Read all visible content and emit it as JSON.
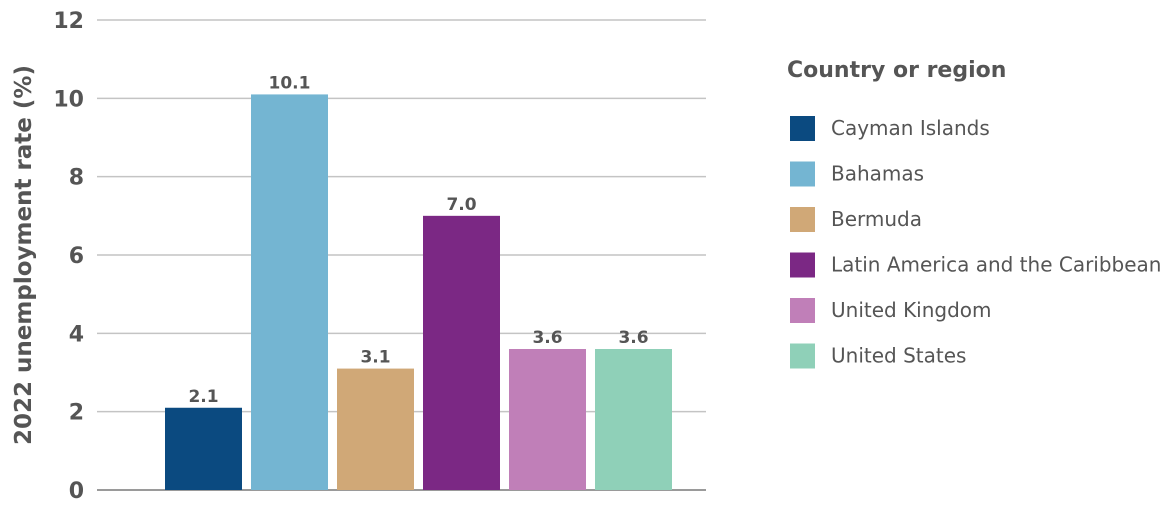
{
  "chart_data": {
    "type": "bar",
    "categories": [
      "Cayman Islands",
      "Bahamas",
      "Bermuda",
      "Latin America and the Caribbean",
      "United Kingdom",
      "United States"
    ],
    "values": [
      2.1,
      10.1,
      3.1,
      7.0,
      3.6,
      3.6
    ],
    "value_labels": [
      "2.1",
      "10.1",
      "3.1",
      "7.0",
      "3.6",
      "3.6"
    ],
    "colors": [
      "#0b4a80",
      "#74b5d2",
      "#d0a877",
      "#7b2884",
      "#c07fb8",
      "#8fd0b8"
    ],
    "ylabel": "2022 unemployment rate (%)",
    "xlabel": "",
    "ylim": [
      0,
      12
    ],
    "yticks": [
      0,
      2,
      4,
      6,
      8,
      10,
      12
    ],
    "grid": true,
    "legend": {
      "title": "Country or region",
      "placement": "right"
    }
  }
}
